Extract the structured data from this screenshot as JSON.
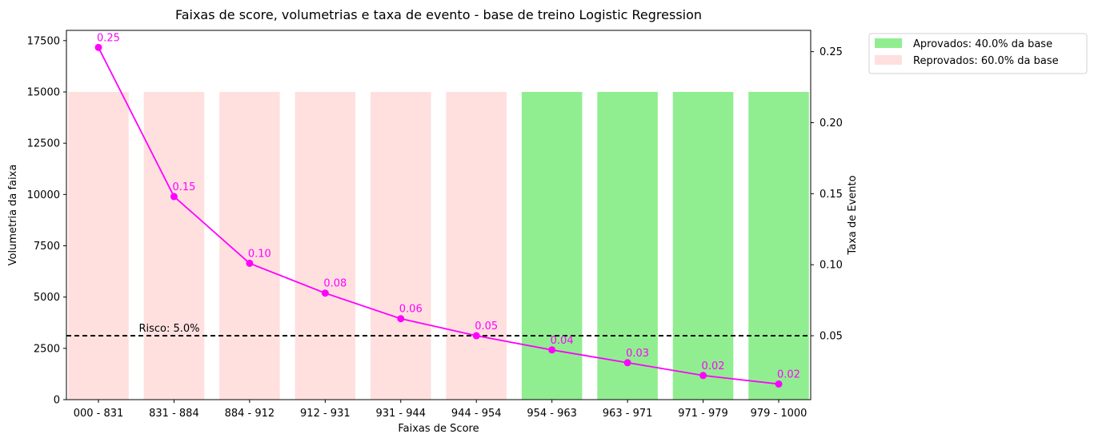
{
  "chart_data": {
    "type": "bar",
    "title": "Faixas de score, volumetrias e taxa de evento - base de treino Logistic Regression",
    "xlabel": "Faixas de Score",
    "ylabel": "Volumetria da faixa",
    "y2label": "Taxa de Evento",
    "categories": [
      "000 - 831",
      "831 - 884",
      "884 - 912",
      "912 - 931",
      "931 - 944",
      "944 - 954",
      "954 - 963",
      "963 - 971",
      "971 - 979",
      "979 - 1000"
    ],
    "ylim": [
      0,
      18000
    ],
    "yticks": [
      0,
      2500,
      5000,
      7500,
      10000,
      12500,
      15000,
      17500
    ],
    "y2lim": [
      0.005,
      0.265
    ],
    "y2ticks": [
      0.05,
      0.1,
      0.15,
      0.2,
      0.25
    ],
    "grid": false,
    "series": [
      {
        "kind": "bar",
        "axis": "left",
        "values": [
          15000,
          15000,
          15000,
          15000,
          15000,
          15000,
          15000,
          15000,
          15000,
          15000
        ],
        "groups": [
          "reprovados",
          "reprovados",
          "reprovados",
          "reprovados",
          "reprovados",
          "reprovados",
          "aprovados",
          "aprovados",
          "aprovados",
          "aprovados"
        ]
      },
      {
        "kind": "line",
        "axis": "right",
        "color": "#ff00ff",
        "values": [
          0.253,
          0.148,
          0.101,
          0.08,
          0.062,
          0.05,
          0.04,
          0.031,
          0.022,
          0.016
        ],
        "labels": [
          "0.25",
          "0.15",
          "0.10",
          "0.08",
          "0.06",
          "0.05",
          "0.04",
          "0.03",
          "0.02",
          "0.02"
        ]
      }
    ],
    "reference_line": {
      "axis": "right",
      "value": 0.05,
      "label": "Risco: 5.0%",
      "style": "dashed",
      "color": "#000000"
    },
    "legend": {
      "placement": "outside-top-right",
      "items": [
        {
          "key": "aprovados",
          "label": "Aprovados:   40.0% da base",
          "color": "#90ee90"
        },
        {
          "key": "reprovados",
          "label": "Reprovados: 60.0% da base",
          "color": "#ffe0df"
        }
      ]
    }
  }
}
